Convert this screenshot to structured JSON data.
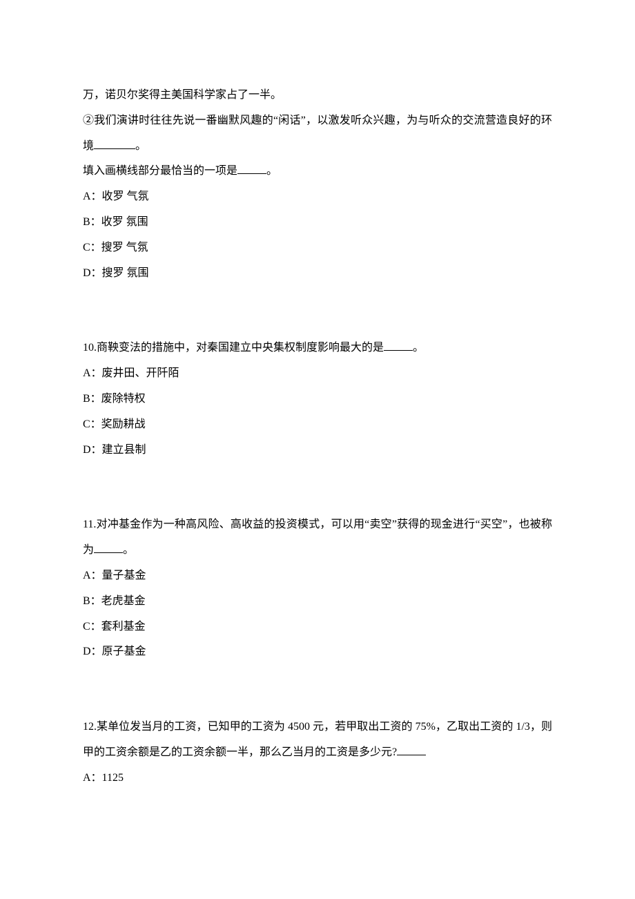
{
  "colors": {
    "background": "#ffffff",
    "text": "#000000"
  },
  "typography": {
    "font_family": "SimSun",
    "font_size_pt": 12,
    "line_height": 2.3
  },
  "q9": {
    "line1": "万，诺贝尔奖得主美国科学家占了一半。",
    "line2_pre": "②我们演讲时往往先说一番幽默风趣的“闲话”，以激发听众兴趣，为与听众的交流营造良好的环境",
    "line2_post": "。",
    "prompt_pre": "填入画横线部分最恰当的一项是",
    "prompt_post": "。",
    "optA": "A：收罗 气氛",
    "optB": "B：收罗 氛围",
    "optC": "C：搜罗 气氛",
    "optD": "D：搜罗 氛围"
  },
  "q10": {
    "stem_pre": "10.商鞅变法的措施中，对秦国建立中央集权制度影响最大的是",
    "stem_post": "。",
    "optA": "A：废井田、开阡陌",
    "optB": "B：废除特权",
    "optC": "C：奖励耕战",
    "optD": "D：建立县制"
  },
  "q11": {
    "stem_pre": "11.对冲基金作为一种高风险、高收益的投资模式，可以用“卖空”获得的现金进行“买空”，也被称为",
    "stem_post": "。",
    "optA": "A：量子基金",
    "optB": "B：老虎基金",
    "optC": "C：套利基金",
    "optD": "D：原子基金"
  },
  "q12": {
    "stem_pre": "12.某单位发当月的工资，已知甲的工资为 4500 元，若甲取出工资的 75%，乙取出工资的 1/3，则甲的工资余额是乙的工资余额一半，那么乙当月的工资是多少元?",
    "optA": "A：1125"
  }
}
